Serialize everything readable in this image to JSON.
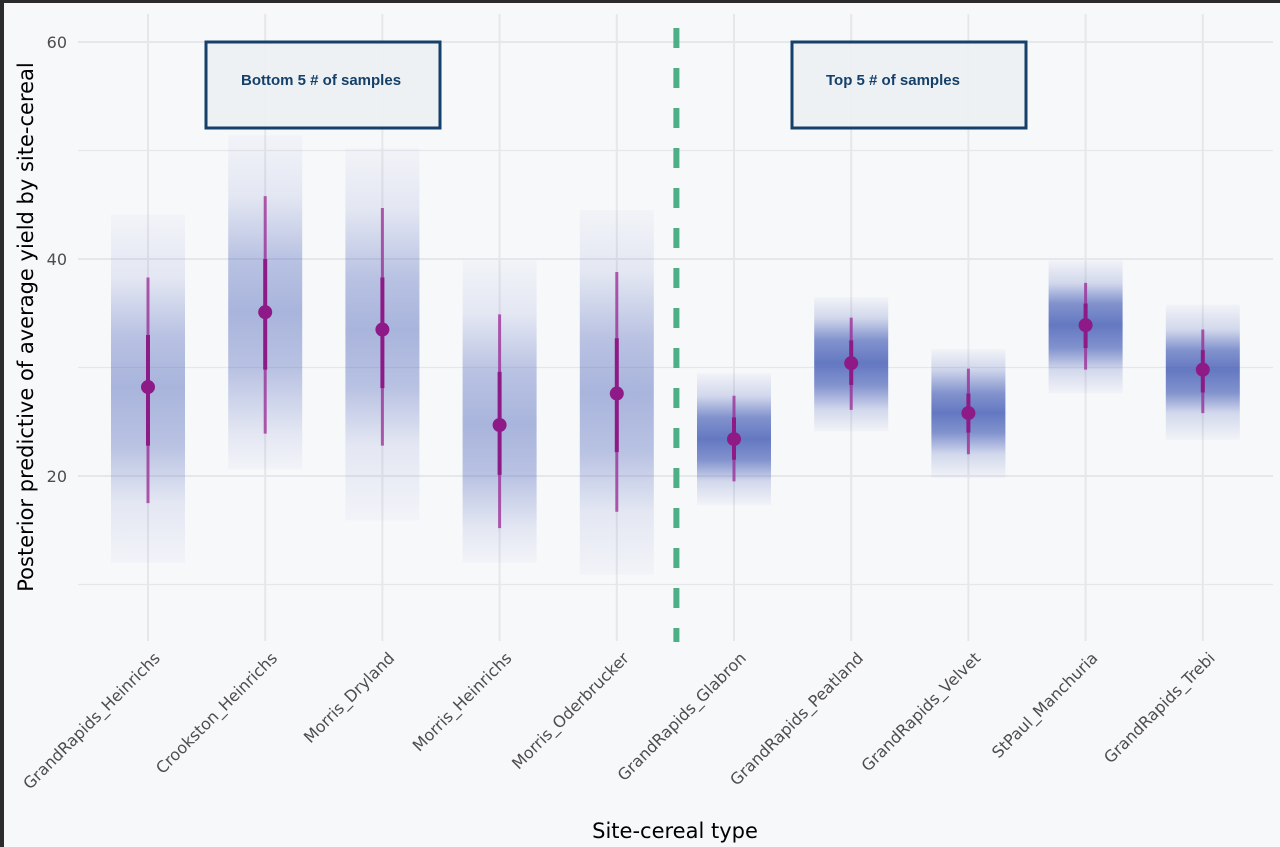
{
  "chart_data": {
    "type": "interval",
    "title": "",
    "xlabel": "Site-cereal type",
    "ylabel": "Posterior predictive of average yield by site-cereal",
    "ylim": [
      7,
      63
    ],
    "yticks": [
      20,
      40,
      60
    ],
    "yminor": [
      10,
      30,
      50
    ],
    "grid": true,
    "categories": [
      "GrandRapids_Heinrichs",
      "Crookston_Heinrichs",
      "Morris_Dryland",
      "Morris_Heinrichs",
      "Morris_Oderbrucker",
      "GrandRapids_Glabron",
      "GrandRapids_Peatland",
      "GrandRapids_Velvet",
      "StPaul_Manchuria",
      "GrandRapids_Trebi"
    ],
    "series": [
      {
        "name": "median",
        "values": [
          28.2,
          35.1,
          33.5,
          24.7,
          27.6,
          23.4,
          30.4,
          25.8,
          33.9,
          29.8
        ]
      },
      {
        "name": "inner_low",
        "values": [
          22.8,
          29.8,
          28.1,
          20.1,
          22.2,
          21.5,
          28.4,
          24.0,
          31.8,
          27.7
        ]
      },
      {
        "name": "inner_high",
        "values": [
          33.0,
          40.0,
          38.3,
          29.6,
          32.7,
          25.4,
          32.5,
          27.6,
          35.9,
          31.6
        ]
      },
      {
        "name": "outer_low",
        "values": [
          17.5,
          23.9,
          22.8,
          15.2,
          16.7,
          19.5,
          26.1,
          22.0,
          29.8,
          25.8
        ]
      },
      {
        "name": "outer_high",
        "values": [
          38.3,
          45.8,
          44.7,
          34.9,
          38.8,
          27.4,
          34.6,
          29.9,
          37.8,
          33.5
        ]
      },
      {
        "name": "density_low",
        "values": [
          12.0,
          20.6,
          15.9,
          12.0,
          10.9,
          17.3,
          24.1,
          19.8,
          27.6,
          23.3
        ]
      },
      {
        "name": "density_high",
        "values": [
          44.1,
          51.4,
          50.2,
          39.9,
          44.5,
          29.5,
          36.5,
          31.7,
          39.9,
          35.8
        ]
      }
    ],
    "separator": {
      "after_index": 4,
      "style": "dashed",
      "color": "#4caf85"
    },
    "annotations": [
      {
        "text": "Bottom 5 # of samples",
        "group": "left"
      },
      {
        "text": "Top 5 # of samples",
        "group": "right"
      }
    ],
    "colors": {
      "point": "#8e1a87",
      "interval": "#9c2a94",
      "density": "#4a62b8",
      "grid": "#e6e7ea",
      "annotation_border": "#14406a",
      "annotation_fill": "#edf0f3"
    }
  }
}
